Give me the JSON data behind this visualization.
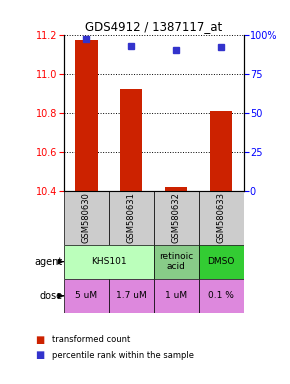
{
  "title": "GDS4912 / 1387117_at",
  "samples": [
    "GSM580630",
    "GSM580631",
    "GSM580632",
    "GSM580633"
  ],
  "bar_values": [
    11.17,
    10.92,
    10.42,
    10.81
  ],
  "percentile_values": [
    97,
    93,
    90,
    92
  ],
  "ylim_left": [
    10.4,
    11.2
  ],
  "ylim_right": [
    0,
    100
  ],
  "yticks_left": [
    10.4,
    10.6,
    10.8,
    11.0,
    11.2
  ],
  "yticks_right": [
    0,
    25,
    50,
    75,
    100
  ],
  "ytick_labels_right": [
    "0",
    "25",
    "50",
    "75",
    "100%"
  ],
  "bar_color": "#cc2200",
  "dot_color": "#3333cc",
  "agent_spans": [
    [
      0,
      1,
      "KHS101",
      "#bbffbb"
    ],
    [
      2,
      2,
      "retinoic\nacid",
      "#88cc88"
    ],
    [
      3,
      3,
      "DMSO",
      "#33cc33"
    ]
  ],
  "dose_labels": [
    "5 uM",
    "1.7 uM",
    "1 uM",
    "0.1 %"
  ],
  "dose_colors": [
    "#dd88ee",
    "#dd88ee",
    "#dd88ee",
    "#eeaaee"
  ],
  "dose_color": "#dd88dd",
  "grid_color": "#888888",
  "sample_box_color": "#cccccc",
  "legend_bar_label": "transformed count",
  "legend_dot_label": "percentile rank within the sample"
}
